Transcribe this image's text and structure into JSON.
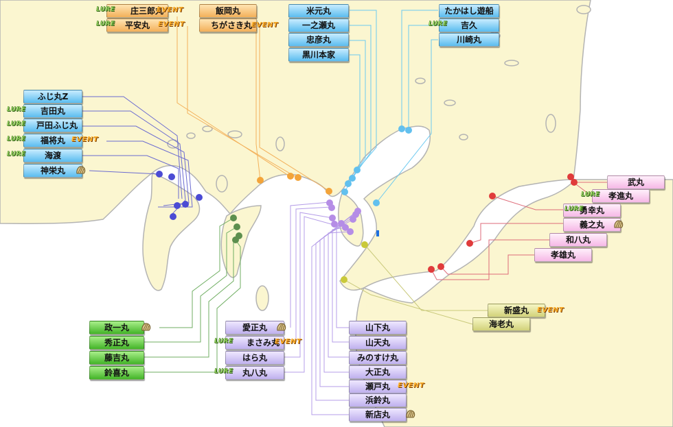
{
  "badges": {
    "lure": "LURE",
    "event": "EVENT"
  },
  "icons": {
    "shell": "shellfish-icon"
  },
  "colors": {
    "land": "#fbf6d0",
    "sea": "#ffffff",
    "coast": "#b3b3b3",
    "blue": "#5bbcef",
    "orange": "#f3b05a",
    "green": "#43b428",
    "purple": "#bfb0ee",
    "pink": "#f6b8e6",
    "yellow": "#d2d27a",
    "red": "#e03b3b"
  },
  "groups": {
    "orange_left": [
      {
        "name": "庄三郎丸",
        "lure": true,
        "event": true,
        "shell": false
      },
      {
        "name": "平安丸",
        "lure": true,
        "event": true,
        "shell": false
      }
    ],
    "orange_right": [
      {
        "name": "飯岡丸",
        "lure": false,
        "event": false,
        "shell": false
      },
      {
        "name": "ちがさき丸",
        "lure": false,
        "event": true,
        "shell": false
      }
    ],
    "blue_center": [
      {
        "name": "米元丸"
      },
      {
        "name": "一之瀬丸"
      },
      {
        "name": "忠彦丸"
      },
      {
        "name": "黒川本家"
      }
    ],
    "blue_right": [
      {
        "name": "たかはし遊船",
        "lure": false
      },
      {
        "name": "吉久",
        "lure": true
      },
      {
        "name": "川崎丸",
        "lure": false
      }
    ],
    "blue_left": [
      {
        "name": "ふじ丸Z",
        "lure": false,
        "event": false,
        "shell": false
      },
      {
        "name": "吉田丸",
        "lure": true,
        "event": false,
        "shell": false
      },
      {
        "name": "戸田ふじ丸",
        "lure": true,
        "event": false,
        "shell": false
      },
      {
        "name": "福将丸",
        "lure": true,
        "event": true,
        "shell": false
      },
      {
        "name": "海渡",
        "lure": true,
        "event": false,
        "shell": false
      },
      {
        "name": "神栄丸",
        "lure": false,
        "event": false,
        "shell": true
      }
    ],
    "green": [
      {
        "name": "政一丸",
        "shell": true
      },
      {
        "name": "秀正丸",
        "shell": false
      },
      {
        "name": "藤吉丸",
        "shell": false
      },
      {
        "name": "鈴喜丸",
        "shell": false
      }
    ],
    "purple_left": [
      {
        "name": "愛正丸",
        "lure": false,
        "event": false,
        "shell": true
      },
      {
        "name": "まさみ丸",
        "lure": true,
        "event": true,
        "shell": false
      },
      {
        "name": "はら丸",
        "lure": false,
        "event": false,
        "shell": false
      },
      {
        "name": "丸八丸",
        "lure": true,
        "event": false,
        "shell": false
      }
    ],
    "purple_right": [
      {
        "name": "山下丸",
        "event": false,
        "shell": false
      },
      {
        "name": "山天丸",
        "event": false,
        "shell": false
      },
      {
        "name": "みのすけ丸",
        "event": false,
        "shell": false
      },
      {
        "name": "大正丸",
        "event": false,
        "shell": false
      },
      {
        "name": "瀬戸丸",
        "event": true,
        "shell": false
      },
      {
        "name": "浜鈴丸",
        "event": false,
        "shell": false
      },
      {
        "name": "新店丸",
        "event": false,
        "shell": true
      }
    ],
    "pink": [
      {
        "name": "武丸",
        "lure": false,
        "shell": false
      },
      {
        "name": "孝進丸",
        "lure": true,
        "shell": false
      },
      {
        "name": "勇幸丸",
        "lure": true,
        "shell": false
      },
      {
        "name": "義之丸",
        "lure": false,
        "shell": true
      },
      {
        "name": "和八丸",
        "lure": false,
        "shell": false
      },
      {
        "name": "孝雄丸",
        "lure": false,
        "shell": false
      }
    ],
    "yellow": [
      {
        "name": "新盛丸",
        "event": true
      },
      {
        "name": "海老丸",
        "event": false
      }
    ]
  }
}
